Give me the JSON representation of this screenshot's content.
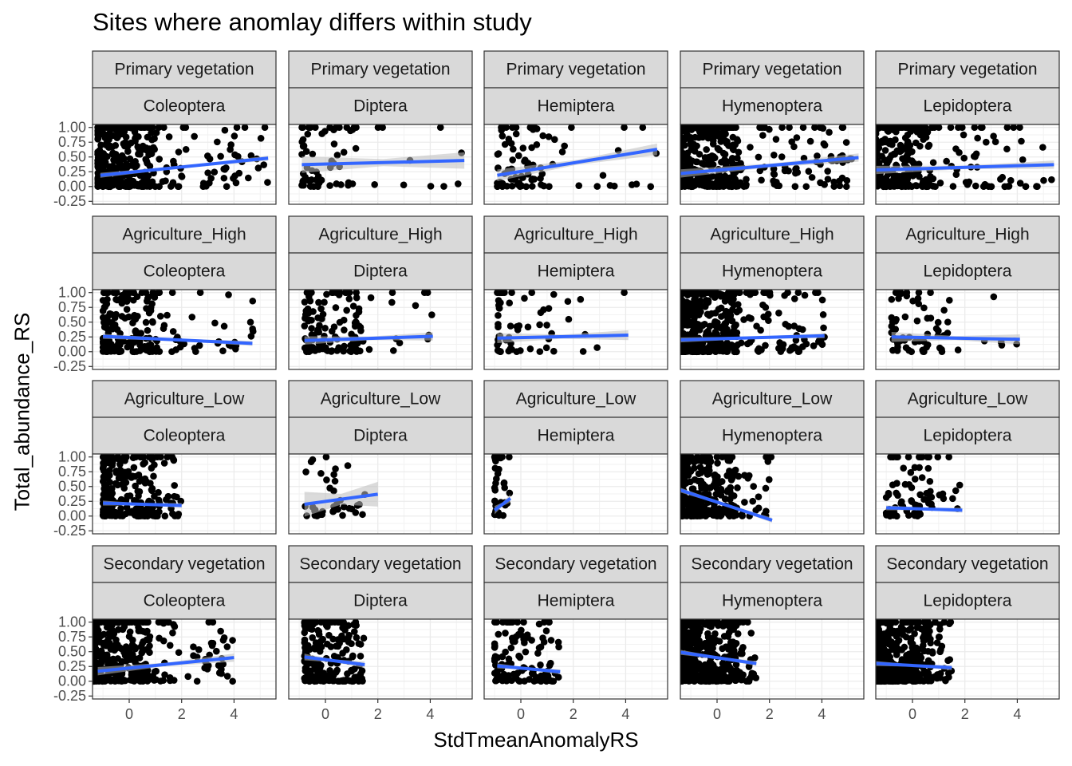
{
  "title": "Sites where anomlay differs within study",
  "chart_data": {
    "type": "scatter",
    "title": "Sites where anomlay differs within study",
    "xlabel": "StdTmeanAnomalyRS",
    "ylabel": "Total_abundance_RS",
    "xlim": [
      -1.4,
      5.6
    ],
    "ylim": [
      -0.3,
      1.05
    ],
    "xticks": [
      0,
      2,
      4
    ],
    "yticks": [
      -0.25,
      0.0,
      0.25,
      0.5,
      0.75,
      1.0
    ],
    "ytick_labels": [
      "-0.25",
      "0.00",
      "0.25",
      "0.50",
      "0.75",
      "1.00"
    ],
    "grid": true,
    "point_color": "#000000",
    "line_color": "#3366FF",
    "ribbon_color": "#BEBEBE",
    "strip_fill": "#D9D9D9",
    "facet_rows": [
      "Primary vegetation",
      "Agriculture_High",
      "Agriculture_Low",
      "Secondary vegetation"
    ],
    "facet_cols": [
      "Coleoptera",
      "Diptera",
      "Hemiptera",
      "Hymenoptera",
      "Lepidoptera"
    ],
    "panels": [
      {
        "row": "Primary vegetation",
        "col": "Coleoptera",
        "fit_x": [
          -1.1,
          5.3
        ],
        "fit_y": [
          0.19,
          0.48
        ],
        "se": 0.03,
        "x_range": [
          -1.2,
          5.4
        ],
        "n": 380
      },
      {
        "row": "Primary vegetation",
        "col": "Diptera",
        "fit_x": [
          -0.9,
          5.3
        ],
        "fit_y": [
          0.37,
          0.44
        ],
        "se": 0.1,
        "x_range": [
          -0.9,
          5.4
        ],
        "n": 70
      },
      {
        "row": "Primary vegetation",
        "col": "Hemiptera",
        "fit_x": [
          -0.9,
          5.2
        ],
        "fit_y": [
          0.19,
          0.63
        ],
        "se": 0.07,
        "x_range": [
          -0.9,
          5.2
        ],
        "n": 90
      },
      {
        "row": "Primary vegetation",
        "col": "Hymenoptera",
        "fit_x": [
          -1.4,
          5.4
        ],
        "fit_y": [
          0.22,
          0.49
        ],
        "se": 0.05,
        "x_range": [
          -1.4,
          5.4
        ],
        "n": 450
      },
      {
        "row": "Primary vegetation",
        "col": "Lepidoptera",
        "fit_x": [
          -1.4,
          5.4
        ],
        "fit_y": [
          0.28,
          0.37
        ],
        "se": 0.05,
        "x_range": [
          -1.4,
          5.4
        ],
        "n": 300
      },
      {
        "row": "Agriculture_High",
        "col": "Coleoptera",
        "fit_x": [
          -1.0,
          4.7
        ],
        "fit_y": [
          0.26,
          0.14
        ],
        "se": 0.03,
        "x_range": [
          -1.0,
          4.8
        ],
        "n": 200
      },
      {
        "row": "Agriculture_High",
        "col": "Diptera",
        "fit_x": [
          -0.8,
          4.1
        ],
        "fit_y": [
          0.19,
          0.26
        ],
        "se": 0.05,
        "x_range": [
          -0.8,
          4.1
        ],
        "n": 130
      },
      {
        "row": "Agriculture_High",
        "col": "Hemiptera",
        "fit_x": [
          -0.9,
          4.1
        ],
        "fit_y": [
          0.23,
          0.28
        ],
        "se": 0.06,
        "x_range": [
          -0.9,
          4.1
        ],
        "n": 60
      },
      {
        "row": "Agriculture_High",
        "col": "Hymenoptera",
        "fit_x": [
          -1.4,
          4.1
        ],
        "fit_y": [
          0.2,
          0.27
        ],
        "se": 0.03,
        "x_range": [
          -1.4,
          4.1
        ],
        "n": 450
      },
      {
        "row": "Agriculture_High",
        "col": "Lepidoptera",
        "fit_x": [
          -0.8,
          4.1
        ],
        "fit_y": [
          0.25,
          0.21
        ],
        "se": 0.06,
        "x_range": [
          -0.8,
          4.1
        ],
        "n": 70
      },
      {
        "row": "Agriculture_Low",
        "col": "Coleoptera",
        "fit_x": [
          -1.0,
          2.0
        ],
        "fit_y": [
          0.22,
          0.18
        ],
        "se": 0.03,
        "x_range": [
          -1.0,
          2.0
        ],
        "n": 250
      },
      {
        "row": "Agriculture_Low",
        "col": "Diptera",
        "fit_x": [
          -0.8,
          2.0
        ],
        "fit_y": [
          0.2,
          0.37
        ],
        "se": 0.15,
        "x_range": [
          -0.8,
          2.2
        ],
        "n": 40
      },
      {
        "row": "Agriculture_Low",
        "col": "Hemiptera",
        "fit_x": [
          -1.0,
          -0.4
        ],
        "fit_y": [
          0.1,
          0.3
        ],
        "se": 0.05,
        "x_range": [
          -1.0,
          -0.4
        ],
        "n": 40
      },
      {
        "row": "Agriculture_Low",
        "col": "Hymenoptera",
        "fit_x": [
          -1.4,
          2.1
        ],
        "fit_y": [
          0.44,
          -0.07
        ],
        "se": 0.03,
        "x_range": [
          -1.4,
          2.1
        ],
        "n": 280
      },
      {
        "row": "Agriculture_Low",
        "col": "Lepidoptera",
        "fit_x": [
          -1.0,
          1.9
        ],
        "fit_y": [
          0.14,
          0.1
        ],
        "se": 0.03,
        "x_range": [
          -1.0,
          2.0
        ],
        "n": 80
      },
      {
        "row": "Secondary vegetation",
        "col": "Coleoptera",
        "fit_x": [
          -1.2,
          4.0
        ],
        "fit_y": [
          0.17,
          0.4
        ],
        "se": 0.05,
        "x_range": [
          -1.4,
          4.0
        ],
        "n": 380
      },
      {
        "row": "Secondary vegetation",
        "col": "Diptera",
        "fit_x": [
          -0.8,
          1.5
        ],
        "fit_y": [
          0.41,
          0.28
        ],
        "se": 0.04,
        "x_range": [
          -0.8,
          1.5
        ],
        "n": 200
      },
      {
        "row": "Secondary vegetation",
        "col": "Hemiptera",
        "fit_x": [
          -0.9,
          1.5
        ],
        "fit_y": [
          0.26,
          0.16
        ],
        "se": 0.03,
        "x_range": [
          -1.0,
          1.5
        ],
        "n": 120
      },
      {
        "row": "Secondary vegetation",
        "col": "Hymenoptera",
        "fit_x": [
          -1.4,
          1.5
        ],
        "fit_y": [
          0.49,
          0.3
        ],
        "se": 0.03,
        "x_range": [
          -1.4,
          1.5
        ],
        "n": 500
      },
      {
        "row": "Secondary vegetation",
        "col": "Lepidoptera",
        "fit_x": [
          -1.4,
          1.5
        ],
        "fit_y": [
          0.3,
          0.23
        ],
        "se": 0.03,
        "x_range": [
          -1.4,
          1.5
        ],
        "n": 450
      }
    ]
  }
}
